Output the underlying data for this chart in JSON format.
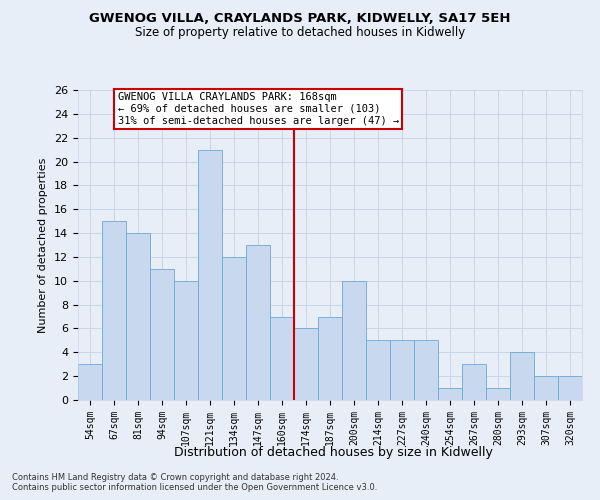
{
  "title1": "GWENOG VILLA, CRAYLANDS PARK, KIDWELLY, SA17 5EH",
  "title2": "Size of property relative to detached houses in Kidwelly",
  "xlabel": "Distribution of detached houses by size in Kidwelly",
  "ylabel": "Number of detached properties",
  "categories": [
    "54sqm",
    "67sqm",
    "81sqm",
    "94sqm",
    "107sqm",
    "121sqm",
    "134sqm",
    "147sqm",
    "160sqm",
    "174sqm",
    "187sqm",
    "200sqm",
    "214sqm",
    "227sqm",
    "240sqm",
    "254sqm",
    "267sqm",
    "280sqm",
    "293sqm",
    "307sqm",
    "320sqm"
  ],
  "values": [
    3,
    15,
    14,
    11,
    10,
    21,
    12,
    13,
    7,
    6,
    7,
    10,
    5,
    5,
    5,
    1,
    3,
    1,
    4,
    2,
    2
  ],
  "bar_color": "#c8d8ee",
  "bar_edge_color": "#6aaad4",
  "grid_color": "#c8d4e8",
  "background_color": "#e8eef8",
  "vline_x": 8.5,
  "vline_color": "#cc0000",
  "annotation_title": "GWENOG VILLA CRAYLANDS PARK: 168sqm",
  "annotation_line1": "← 69% of detached houses are smaller (103)",
  "annotation_line2": "31% of semi-detached houses are larger (47) →",
  "annotation_box_color": "#ffffff",
  "annotation_box_edge": "#cc0000",
  "ylim": [
    0,
    26
  ],
  "yticks": [
    0,
    2,
    4,
    6,
    8,
    10,
    12,
    14,
    16,
    18,
    20,
    22,
    24,
    26
  ],
  "footnote1": "Contains HM Land Registry data © Crown copyright and database right 2024.",
  "footnote2": "Contains public sector information licensed under the Open Government Licence v3.0."
}
